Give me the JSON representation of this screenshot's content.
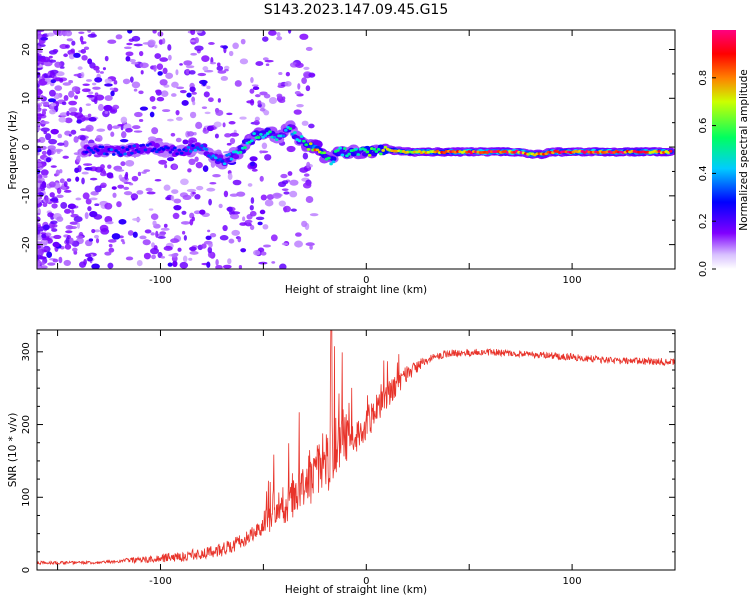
{
  "figure_title": "S143.2023.147.09.45.G15",
  "chart_data": [
    {
      "type": "heatmap",
      "xlabel": "Height of straight line (km)",
      "ylabel": "Frequency (Hz)",
      "xlim": [
        -160,
        150
      ],
      "ylim": [
        -25,
        24
      ],
      "xticks": [
        -100,
        0,
        100
      ],
      "yticks": [
        -20,
        -10,
        0,
        10,
        20
      ],
      "colorbar": {
        "label": "Normalized spectral amplitude",
        "range": [
          0,
          1
        ],
        "ticks": [
          "0.0",
          "0.2",
          "0.4",
          "0.6",
          "0.8"
        ],
        "colormap": [
          "#e0ccff",
          "#8000ff",
          "#0000ff",
          "#00ffff",
          "#00ff00",
          "#ffff00",
          "#ff0000",
          "#ff0080"
        ]
      },
      "ridge": {
        "x": [
          -135,
          -120,
          -105,
          -90,
          -80,
          -70,
          -62,
          -55,
          -48,
          -42,
          -37,
          -33,
          -28,
          -24,
          -20,
          -17,
          -14,
          -10,
          0,
          10,
          20,
          40,
          60,
          75,
          80,
          85,
          90,
          100,
          110,
          120,
          130,
          148
        ],
        "freq": [
          -0.5,
          -1,
          0,
          -1,
          0,
          -3,
          -1,
          2,
          3,
          2,
          4,
          2,
          0,
          0,
          -2,
          -3,
          -1,
          -1,
          -1,
          -0.5,
          -1,
          -1,
          -1,
          -1,
          -1.5,
          -1.5,
          -1,
          -1,
          -1,
          -1,
          -1,
          -1
        ],
        "amplitude": [
          0.3,
          0.35,
          0.3,
          0.3,
          0.4,
          0.4,
          0.45,
          0.55,
          0.5,
          0.45,
          0.5,
          0.4,
          0.6,
          0.85,
          0.6,
          0.5,
          0.55,
          0.5,
          0.6,
          0.7,
          0.75,
          0.85,
          0.9,
          0.9,
          0.8,
          0.8,
          0.85,
          0.9,
          0.9,
          0.9,
          0.9,
          0.85
        ]
      }
    },
    {
      "type": "line",
      "xlabel": "Height of straight line (km)",
      "ylabel": "SNR (10 * v/v)",
      "xlim": [
        -160,
        150
      ],
      "ylim": [
        0,
        330
      ],
      "xticks": [
        -100,
        0,
        100
      ],
      "yticks": [
        0,
        100,
        200,
        300
      ],
      "color": "#e8332a",
      "trend": {
        "x": [
          -160,
          -130,
          -110,
          -90,
          -70,
          -60,
          -50,
          -40,
          -30,
          -20,
          -10,
          0,
          10,
          20,
          30,
          40,
          60,
          80,
          100,
          120,
          150
        ],
        "snr": [
          10,
          10,
          14,
          18,
          28,
          40,
          60,
          90,
          120,
          150,
          175,
          200,
          240,
          270,
          290,
          298,
          300,
          296,
          293,
          288,
          286
        ]
      }
    }
  ]
}
